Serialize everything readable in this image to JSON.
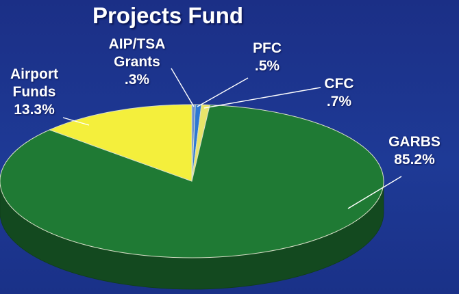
{
  "chart_data": {
    "type": "pie",
    "title": "Projects Fund",
    "categories": [
      "AIP/TSA Grants",
      "PFC",
      "CFC",
      "GARBS",
      "Airport Funds"
    ],
    "values": [
      0.3,
      0.5,
      0.7,
      85.2,
      13.3
    ],
    "value_labels": [
      ".3%",
      ".5%",
      ".7%",
      "85.2%",
      "13.3%"
    ],
    "colors": [
      "#6b8fd0",
      "#2d78d2",
      "#e8e46a",
      "#1f7a34",
      "#f4ef3c"
    ]
  }
}
